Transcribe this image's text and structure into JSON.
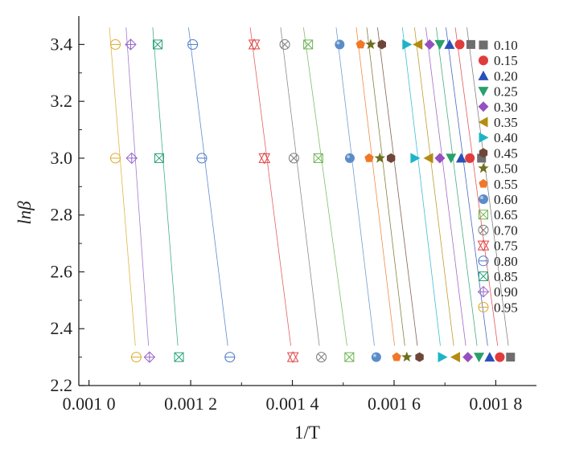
{
  "chart_data": {
    "type": "scatter",
    "title": "",
    "xlabel": "1/T",
    "ylabel": "lnβ",
    "xlim": [
      0.00098,
      0.00188
    ],
    "ylim": [
      2.2,
      3.5
    ],
    "xticks": [
      0.001,
      0.0012,
      0.0014,
      0.0016,
      0.0018
    ],
    "xtick_labels": [
      "0.001 0",
      "0.001 2",
      "0.001 4",
      "0.001 6",
      "0.001 8"
    ],
    "yticks": [
      2.2,
      2.4,
      2.6,
      2.8,
      3.0,
      3.2,
      3.4
    ],
    "ytick_labels": [
      "2.2",
      "2.4",
      "2.6",
      "2.8",
      "3.0",
      "3.2",
      "3.4"
    ],
    "y_levels": [
      3.4,
      3.0,
      2.3
    ],
    "legend_position": "right",
    "grid": false,
    "series": [
      {
        "name": "0.10",
        "marker": "square",
        "color": "#6e6e6e",
        "x": [
          0.001751,
          0.001772,
          0.001829
        ]
      },
      {
        "name": "0.15",
        "marker": "circle",
        "color": "#e03c3c",
        "x": [
          0.001729,
          0.001749,
          0.001808
        ]
      },
      {
        "name": "0.20",
        "marker": "triangle-up",
        "color": "#2a50b8",
        "x": [
          0.001709,
          0.001732,
          0.001788
        ]
      },
      {
        "name": "0.25",
        "marker": "triangle-down",
        "color": "#2aa06a",
        "x": [
          0.00169,
          0.001712,
          0.001767
        ]
      },
      {
        "name": "0.30",
        "marker": "diamond",
        "color": "#9650c0",
        "x": [
          0.00167,
          0.00169,
          0.001745
        ]
      },
      {
        "name": "0.35",
        "marker": "triangle-left",
        "color": "#b48c10",
        "x": [
          0.001647,
          0.001668,
          0.001721
        ]
      },
      {
        "name": "0.40",
        "marker": "triangle-right",
        "color": "#1eb4c8",
        "x": [
          0.001625,
          0.001641,
          0.001695
        ]
      },
      {
        "name": "0.45",
        "marker": "hexagon",
        "color": "#6e4638",
        "x": [
          0.001576,
          0.001594,
          0.00165
        ]
      },
      {
        "name": "0.50",
        "marker": "star",
        "color": "#6e6e1e",
        "x": [
          0.001554,
          0.001572,
          0.001625
        ]
      },
      {
        "name": "0.55",
        "marker": "pentagon",
        "color": "#f07828",
        "x": [
          0.001534,
          0.001551,
          0.001605
        ]
      },
      {
        "name": "0.60",
        "marker": "sphere",
        "color": "#5a8cc8",
        "x": [
          0.001493,
          0.001513,
          0.001565
        ]
      },
      {
        "name": "0.65",
        "marker": "boxed-x",
        "color": "#6ab450",
        "x": [
          0.001431,
          0.001451,
          0.001512
        ]
      },
      {
        "name": "0.70",
        "marker": "circled-x",
        "color": "#787878",
        "x": [
          0.001385,
          0.001403,
          0.001457
        ]
      },
      {
        "name": "0.75",
        "marker": "double-triangle",
        "color": "#e04646",
        "x": [
          0.001325,
          0.001345,
          0.001401
        ]
      },
      {
        "name": "0.80",
        "marker": "circled-minus",
        "color": "#4678c8",
        "x": [
          0.001204,
          0.001222,
          0.001277
        ]
      },
      {
        "name": "0.85",
        "marker": "boxed-cross",
        "color": "#28a078",
        "x": [
          0.001135,
          0.001138,
          0.001177
        ]
      },
      {
        "name": "0.90",
        "marker": "diamond-cross",
        "color": "#9664c8",
        "x": [
          0.001082,
          0.001084,
          0.001119
        ]
      },
      {
        "name": "0.95",
        "marker": "circled-minus",
        "color": "#dcaa28",
        "x": [
          0.001052,
          0.001052,
          0.001093
        ]
      }
    ]
  }
}
